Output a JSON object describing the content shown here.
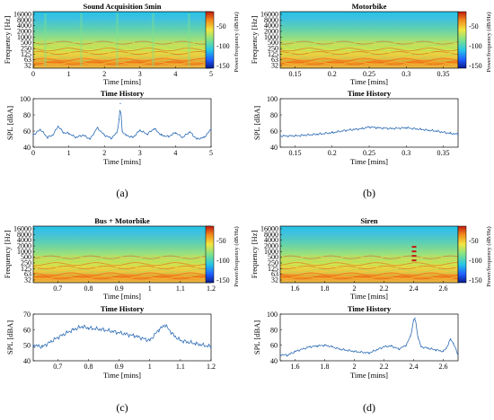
{
  "figure": {
    "sublabels": [
      "(a)",
      "(b)",
      "(c)",
      "(d)"
    ]
  },
  "colorbar": {
    "label": "Power/frequency (dB/Hz)",
    "ticks": [
      "-50",
      "-100",
      "-150"
    ],
    "colormap": [
      "#0a1a8c",
      "#1f5fff",
      "#25c5e8",
      "#7ee38a",
      "#f2e640",
      "#f28a1c",
      "#c21a10"
    ]
  },
  "spectrogram_common": {
    "ylabel": "Frequency [Hz]",
    "yticks": [
      "16000",
      "8000",
      "4000",
      "2000",
      "1000",
      "500",
      "250",
      "125",
      "63",
      "32"
    ],
    "xlabel": "Time [mins]"
  },
  "history_common": {
    "title": "Time History",
    "ylabel": "SPL [dBA]",
    "xlabel": "Time [mins]",
    "line_color": "#2f6db5"
  },
  "chart_data": [
    {
      "id": "a",
      "type": "line",
      "spectrogram_title": "Sound Acquisition 5min",
      "xlim": [
        0,
        5
      ],
      "xticks": [
        "0",
        "1",
        "2",
        "3",
        "4",
        "5"
      ],
      "ylim": [
        40,
        100
      ],
      "yticks": [
        "40",
        "60",
        "80",
        "100"
      ],
      "x": [
        0,
        0.2,
        0.4,
        0.55,
        0.7,
        0.85,
        1.0,
        1.2,
        1.4,
        1.6,
        1.8,
        2.0,
        2.2,
        2.35,
        2.42,
        2.45,
        2.5,
        2.6,
        2.8,
        3.0,
        3.2,
        3.4,
        3.6,
        3.8,
        4.0,
        4.2,
        4.4,
        4.6,
        4.8,
        5.0
      ],
      "y": [
        55,
        62,
        52,
        55,
        66,
        58,
        57,
        52,
        55,
        50,
        64,
        55,
        51,
        58,
        74,
        94,
        60,
        55,
        52,
        61,
        56,
        63,
        55,
        53,
        58,
        52,
        59,
        50,
        52,
        62
      ]
    },
    {
      "id": "b",
      "type": "line",
      "spectrogram_title": "Motorbike",
      "xlim": [
        0.13,
        0.37
      ],
      "xticks": [
        "0.15",
        "0.2",
        "0.25",
        "0.3",
        "0.35"
      ],
      "ylim": [
        40,
        100
      ],
      "yticks": [
        "40",
        "60",
        "80",
        "100"
      ],
      "x": [
        0.13,
        0.15,
        0.18,
        0.2,
        0.22,
        0.24,
        0.25,
        0.26,
        0.28,
        0.3,
        0.32,
        0.34,
        0.36,
        0.37
      ],
      "y": [
        54,
        54,
        56,
        58,
        61,
        63,
        65,
        64,
        63,
        64,
        62,
        60,
        57,
        56
      ]
    },
    {
      "id": "c",
      "type": "line",
      "spectrogram_title": "Bus + Motorbike",
      "xlim": [
        0.62,
        1.2
      ],
      "xticks": [
        "0.7",
        "0.8",
        "0.9",
        "1",
        "1.1",
        "1.2"
      ],
      "ylim": [
        40,
        70
      ],
      "yticks": [
        "40",
        "50",
        "60",
        "70"
      ],
      "x": [
        0.62,
        0.65,
        0.7,
        0.75,
        0.78,
        0.8,
        0.85,
        0.9,
        0.95,
        1.0,
        1.03,
        1.05,
        1.08,
        1.1,
        1.15,
        1.2
      ],
      "y": [
        50,
        49,
        55,
        60,
        62,
        61,
        60,
        58,
        56,
        53,
        60,
        63,
        56,
        53,
        51,
        49
      ]
    },
    {
      "id": "d",
      "type": "line",
      "spectrogram_title": "Siren",
      "xlim": [
        1.5,
        2.7
      ],
      "xticks": [
        "1.6",
        "1.8",
        "2",
        "2.2",
        "2.4",
        "2.6"
      ],
      "ylim": [
        40,
        100
      ],
      "yticks": [
        "40",
        "60",
        "80",
        "100"
      ],
      "x": [
        1.5,
        1.55,
        1.6,
        1.7,
        1.75,
        1.8,
        1.85,
        1.9,
        2.0,
        2.1,
        2.15,
        2.2,
        2.25,
        2.3,
        2.35,
        2.38,
        2.4,
        2.41,
        2.43,
        2.45,
        2.5,
        2.55,
        2.6,
        2.62,
        2.65,
        2.67,
        2.7
      ],
      "y": [
        48,
        47,
        52,
        58,
        59,
        60,
        58,
        55,
        52,
        50,
        54,
        58,
        59,
        55,
        60,
        72,
        92,
        95,
        70,
        58,
        56,
        54,
        52,
        56,
        68,
        62,
        47
      ]
    }
  ]
}
